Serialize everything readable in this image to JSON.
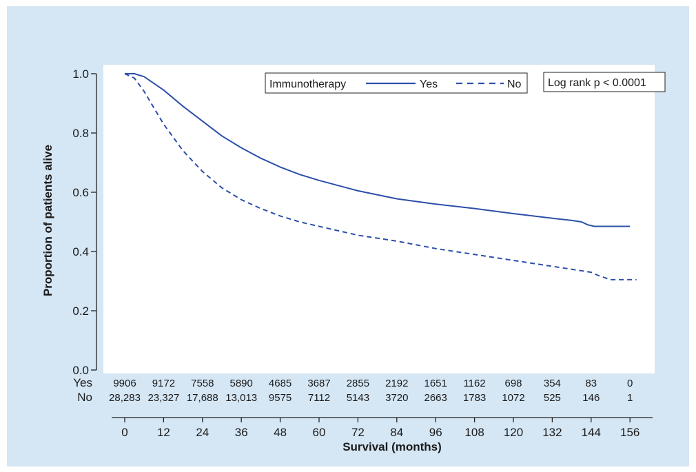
{
  "chart_data": {
    "type": "line",
    "title": "",
    "xlabel": "Survival (months)",
    "ylabel": "Proportion of patients alive",
    "xlim": [
      0,
      156
    ],
    "ylim": [
      0.0,
      1.0
    ],
    "x_ticks": [
      0,
      12,
      24,
      36,
      48,
      60,
      72,
      84,
      96,
      108,
      120,
      132,
      144,
      156
    ],
    "y_ticks": [
      0.0,
      0.2,
      0.4,
      0.6,
      0.8,
      1.0
    ],
    "y_tick_labels": [
      "0.0",
      "0.2",
      "0.4",
      "0.6",
      "0.8",
      "1.0"
    ],
    "grid": false,
    "legend": {
      "position": "top-right",
      "title": "Immunotherapy",
      "entries": [
        "Yes",
        "No"
      ]
    },
    "annotation": "Log rank p < 0.0001",
    "colors": {
      "line": "#2b4fa8",
      "background": "#d5e6f4",
      "plot_bg": "#ffffff"
    },
    "series": [
      {
        "name": "Yes",
        "style": "solid",
        "x": [
          0,
          3,
          6,
          12,
          18,
          24,
          30,
          36,
          42,
          48,
          54,
          60,
          72,
          84,
          96,
          108,
          120,
          132,
          138,
          141,
          143,
          145,
          156
        ],
        "y": [
          1.0,
          1.0,
          0.99,
          0.945,
          0.89,
          0.84,
          0.79,
          0.75,
          0.715,
          0.685,
          0.66,
          0.64,
          0.605,
          0.578,
          0.56,
          0.545,
          0.528,
          0.512,
          0.505,
          0.5,
          0.49,
          0.485,
          0.485
        ]
      },
      {
        "name": "No",
        "style": "dashed",
        "x": [
          0,
          3,
          6,
          12,
          18,
          24,
          30,
          36,
          42,
          48,
          54,
          60,
          72,
          84,
          96,
          108,
          120,
          132,
          144,
          146,
          150,
          156,
          158
        ],
        "y": [
          1.0,
          0.985,
          0.94,
          0.83,
          0.74,
          0.67,
          0.615,
          0.575,
          0.545,
          0.52,
          0.5,
          0.485,
          0.455,
          0.435,
          0.41,
          0.39,
          0.37,
          0.35,
          0.33,
          0.32,
          0.305,
          0.305,
          0.305
        ]
      }
    ],
    "risk_table": {
      "rows": [
        {
          "label": "Yes",
          "values": [
            "9906",
            "9172",
            "7558",
            "5890",
            "4685",
            "3687",
            "2855",
            "2192",
            "1651",
            "1162",
            "698",
            "354",
            "83",
            "0"
          ]
        },
        {
          "label": "No",
          "values": [
            "28,283",
            "23,327",
            "17,688",
            "13,013",
            "9575",
            "7112",
            "5143",
            "3720",
            "2663",
            "1783",
            "1072",
            "525",
            "146",
            "1"
          ]
        }
      ]
    }
  }
}
